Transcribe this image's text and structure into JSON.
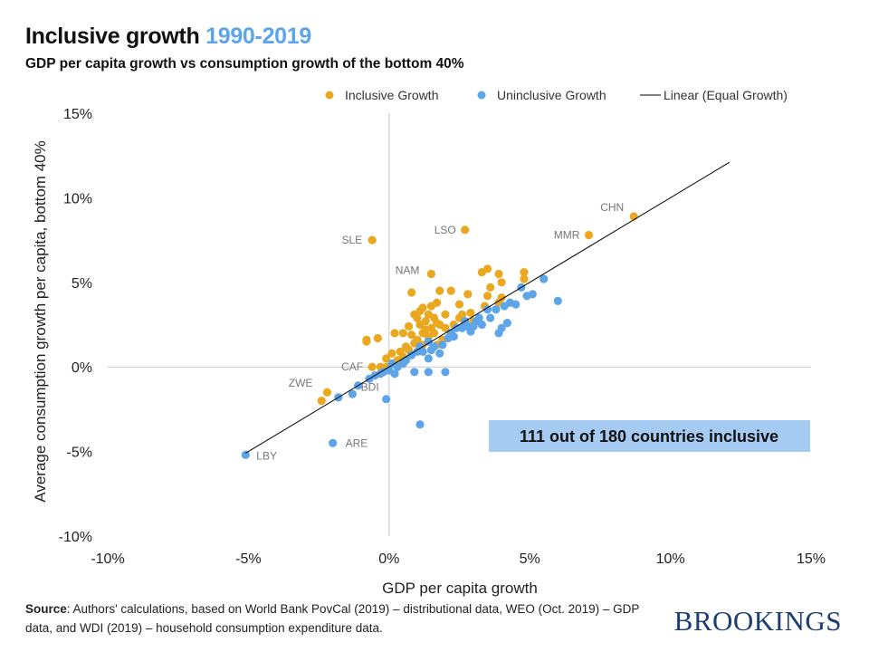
{
  "title": {
    "main": "Inclusive growth",
    "years": "1990-2019"
  },
  "subtitle": "GDP per capita growth vs consumption growth of the bottom 40%",
  "source": {
    "label": "Source",
    "text": ": Authors' calculations, based on World Bank PovCal (2019) – distributional data, WEO (Oct. 2019) – GDP data, and WDI (2019) – household consumption expenditure data."
  },
  "logo": "BROOKINGS",
  "annotation": "111 out of 180 countries inclusive",
  "colors": {
    "inclusive": "#E9A820",
    "uninclusive": "#5DA5E8",
    "annotation_bg": "#A6CBF2",
    "line": "#000000"
  },
  "chart_data": {
    "type": "scatter",
    "xlabel": "GDP per capita growth",
    "ylabel": "Average consumption growth per capita, bottom 40%",
    "xlim": [
      -10,
      15
    ],
    "ylim": [
      -10,
      15
    ],
    "xticks": [
      -10,
      -5,
      0,
      5,
      10,
      15
    ],
    "yticks": [
      -10,
      -5,
      0,
      5,
      10,
      15
    ],
    "xtick_labels": [
      "-10%",
      "-5%",
      "0%",
      "5%",
      "10%",
      "15%"
    ],
    "ytick_labels": [
      "-10%",
      "-5%",
      "0%",
      "5%",
      "10%",
      "15%"
    ],
    "grid": "zero lines",
    "legend_position": "top",
    "legend": [
      "Inclusive Growth",
      "Uninclusive Growth",
      "Linear (Equal Growth)"
    ],
    "equal_growth_line": {
      "from": -5.1,
      "to": 12.1
    },
    "series": [
      {
        "name": "Inclusive Growth",
        "color": "#E9A820",
        "points": [
          [
            8.7,
            8.9
          ],
          [
            7.1,
            7.8
          ],
          [
            2.7,
            8.1
          ],
          [
            -0.6,
            7.5
          ],
          [
            1.5,
            5.5
          ],
          [
            -0.6,
            0.0
          ],
          [
            -2.2,
            -1.5
          ],
          [
            -2.4,
            -2.0
          ],
          [
            3.5,
            5.8
          ],
          [
            3.3,
            5.6
          ],
          [
            4.8,
            5.6
          ],
          [
            4.8,
            5.2
          ],
          [
            3.9,
            5.5
          ],
          [
            4.0,
            5.0
          ],
          [
            3.6,
            4.7
          ],
          [
            2.8,
            4.3
          ],
          [
            2.2,
            4.5
          ],
          [
            1.8,
            4.5
          ],
          [
            0.8,
            4.4
          ],
          [
            3.5,
            4.2
          ],
          [
            4.0,
            4.1
          ],
          [
            1.7,
            3.8
          ],
          [
            1.5,
            3.6
          ],
          [
            1.2,
            3.5
          ],
          [
            2.5,
            3.7
          ],
          [
            3.4,
            3.6
          ],
          [
            2.0,
            3.1
          ],
          [
            2.6,
            3.1
          ],
          [
            2.9,
            3.2
          ],
          [
            2.5,
            2.9
          ],
          [
            0.9,
            3.1
          ],
          [
            1.0,
            2.9
          ],
          [
            1.1,
            2.5
          ],
          [
            1.3,
            2.7
          ],
          [
            1.4,
            3.1
          ],
          [
            1.6,
            2.9
          ],
          [
            1.8,
            2.5
          ],
          [
            1.5,
            2.3
          ],
          [
            1.2,
            2.0
          ],
          [
            1.4,
            1.8
          ],
          [
            1.6,
            2.0
          ],
          [
            2.0,
            2.3
          ],
          [
            2.3,
            2.5
          ],
          [
            0.7,
            2.4
          ],
          [
            0.5,
            2.0
          ],
          [
            0.2,
            2.0
          ],
          [
            0.8,
            1.9
          ],
          [
            1.0,
            1.6
          ],
          [
            1.2,
            1.3
          ],
          [
            0.6,
            1.2
          ],
          [
            0.4,
            0.9
          ],
          [
            0.1,
            0.8
          ],
          [
            0.5,
            0.6
          ],
          [
            -0.8,
            1.5
          ],
          [
            -0.8,
            1.6
          ],
          [
            -0.4,
            1.7
          ],
          [
            -0.3,
            0.0
          ],
          [
            -0.1,
            0.0
          ],
          [
            -0.1,
            0.5
          ],
          [
            0.3,
            0.4
          ],
          [
            0.7,
            1.0
          ],
          [
            2.2,
            2.0
          ],
          [
            1.9,
            1.6
          ],
          [
            1.7,
            1.3
          ],
          [
            0.9,
            1.4
          ],
          [
            3.0,
            2.7
          ],
          [
            2.7,
            2.5
          ],
          [
            3.9,
            3.8
          ],
          [
            1.3,
            2.2
          ],
          [
            1.7,
            2.6
          ],
          [
            1.1,
            3.3
          ]
        ],
        "labels": {
          "0": "CHN",
          "1": "MMR",
          "2": "LSO",
          "3": "SLE",
          "4": "NAM",
          "5": "CAF",
          "6": "ZWE"
        }
      },
      {
        "name": "Uninclusive Growth",
        "color": "#5DA5E8",
        "points": [
          [
            -5.1,
            -5.2
          ],
          [
            -2.0,
            -4.5
          ],
          [
            -0.1,
            -1.9
          ],
          [
            1.1,
            -3.4
          ],
          [
            -1.8,
            -1.8
          ],
          [
            -1.3,
            -1.6
          ],
          [
            -1.1,
            -1.1
          ],
          [
            -0.7,
            -0.7
          ],
          [
            -0.5,
            -0.5
          ],
          [
            -0.3,
            -0.4
          ],
          [
            0.2,
            -0.4
          ],
          [
            0.0,
            -0.2
          ],
          [
            0.3,
            0.0
          ],
          [
            0.5,
            0.2
          ],
          [
            0.9,
            -0.3
          ],
          [
            1.4,
            -0.3
          ],
          [
            2.0,
            -0.3
          ],
          [
            1.4,
            0.5
          ],
          [
            1.8,
            0.8
          ],
          [
            1.2,
            0.9
          ],
          [
            1.0,
            0.9
          ],
          [
            0.8,
            0.7
          ],
          [
            1.6,
            1.2
          ],
          [
            1.4,
            1.5
          ],
          [
            1.5,
            1.0
          ],
          [
            2.1,
            1.7
          ],
          [
            2.3,
            1.8
          ],
          [
            2.6,
            2.3
          ],
          [
            2.9,
            2.1
          ],
          [
            3.0,
            2.4
          ],
          [
            3.1,
            2.7
          ],
          [
            3.3,
            2.5
          ],
          [
            3.6,
            2.9
          ],
          [
            3.8,
            3.4
          ],
          [
            3.9,
            2.0
          ],
          [
            4.0,
            2.3
          ],
          [
            4.2,
            2.6
          ],
          [
            4.3,
            3.8
          ],
          [
            4.5,
            3.7
          ],
          [
            4.9,
            4.2
          ],
          [
            5.1,
            4.3
          ],
          [
            5.5,
            5.2
          ],
          [
            4.7,
            4.7
          ],
          [
            6.0,
            3.9
          ],
          [
            3.5,
            3.4
          ],
          [
            2.7,
            2.7
          ],
          [
            2.2,
            2.0
          ],
          [
            1.9,
            1.3
          ],
          [
            0.6,
            0.4
          ],
          [
            1.1,
            1.2
          ],
          [
            2.4,
            2.3
          ],
          [
            2.8,
            2.4
          ],
          [
            3.2,
            2.9
          ],
          [
            4.1,
            3.6
          ],
          [
            0.1,
            0.2
          ],
          [
            -0.2,
            -0.3
          ]
        ],
        "labels": {
          "0": "LBY",
          "1": "ARE",
          "2": "BDI"
        }
      }
    ]
  }
}
